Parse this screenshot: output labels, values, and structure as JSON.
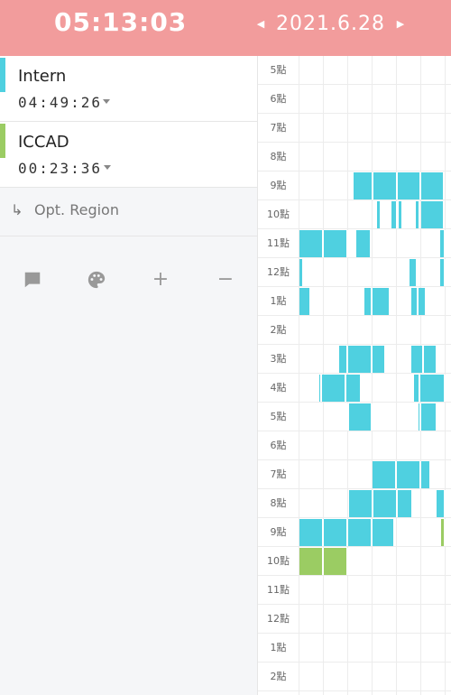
{
  "header": {
    "clock": "05:13:03",
    "date": "2021.6.28",
    "prev_icon": "caret-left-icon",
    "next_icon": "caret-right-icon",
    "bg_color": "#f29c9c"
  },
  "tasks": [
    {
      "name": "Intern",
      "time": "04:49:26",
      "color": "#4fd0e0"
    },
    {
      "name": "ICCAD",
      "time": "00:23:36",
      "color": "#9bcc63"
    }
  ],
  "opt_region": {
    "arrow": "↳",
    "label": "Opt. Region"
  },
  "toolbar": [
    "comment-icon",
    "palette-icon",
    "plus-icon",
    "minus-icon"
  ],
  "hours": [
    "5點",
    "6點",
    "7點",
    "8點",
    "9點",
    "10點",
    "11點",
    "12點",
    "1點",
    "2點",
    "3點",
    "4點",
    "5點",
    "6點",
    "7點",
    "8點",
    "9點",
    "10點",
    "11點",
    "12點",
    "1點",
    "2點"
  ],
  "colors": {
    "intern": "#4fd0e0",
    "iccad": "#9bcc63"
  }
}
